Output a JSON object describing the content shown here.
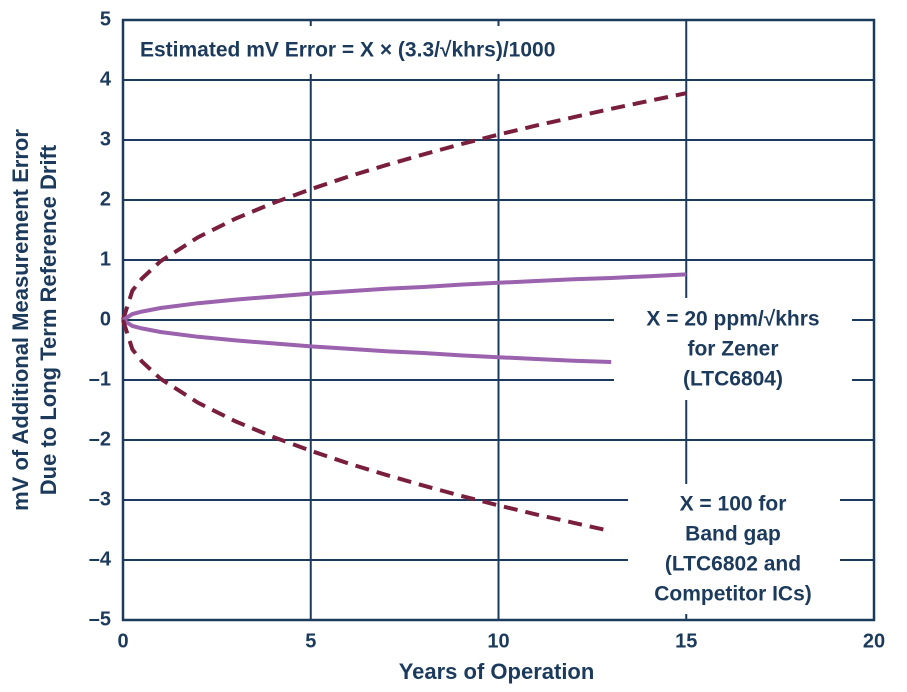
{
  "chart_data": {
    "type": "line",
    "title": "Estimated mV Error = X × (3.3/√khrs)/1000",
    "x_label": "Years of Operation",
    "y_label": [
      "mV of Additional Measurement Error",
      "Due to Long Term Reference Drift"
    ],
    "annotations": [
      [
        "X = 20 ppm/√khrs",
        "for Zener",
        "(LTC6804)"
      ],
      [
        "X = 100 for",
        "Band gap",
        "(LTC6802 and",
        "Competitor ICs)"
      ]
    ],
    "x": [
      0,
      0.25,
      0.5,
      1,
      2,
      3,
      4,
      5,
      6,
      7,
      8,
      9,
      10,
      11,
      12,
      13,
      14,
      15
    ],
    "series": [
      {
        "color": "#7a1e3e",
        "dashed": true,
        "values": [
          0,
          0.49,
          0.69,
          0.98,
          1.38,
          1.69,
          1.95,
          2.18,
          2.39,
          2.58,
          2.76,
          2.93,
          3.09,
          3.24,
          3.38,
          3.52,
          3.65,
          3.78
        ]
      },
      {
        "color": "#9b62ad",
        "dashed": false,
        "values": [
          0,
          0.1,
          0.14,
          0.2,
          0.28,
          0.34,
          0.39,
          0.44,
          0.48,
          0.52,
          0.55,
          0.59,
          0.62,
          0.65,
          0.68,
          0.7,
          0.73,
          0.76
        ]
      },
      {
        "color": "#9b62ad",
        "dashed": false,
        "values": [
          0,
          -0.1,
          -0.14,
          -0.2,
          -0.28,
          -0.34,
          -0.39,
          -0.44,
          -0.48,
          -0.52,
          -0.55,
          -0.59,
          -0.62,
          -0.65,
          -0.68,
          -0.7,
          null,
          null
        ]
      },
      {
        "color": "#7a1e3e",
        "dashed": true,
        "values": [
          0,
          -0.49,
          -0.69,
          -0.98,
          -1.38,
          -1.69,
          -1.95,
          -2.18,
          -2.39,
          -2.58,
          -2.76,
          -2.93,
          -3.09,
          -3.24,
          -3.38,
          -3.52,
          null,
          null
        ]
      }
    ],
    "xlim": [
      0,
      20
    ],
    "xticks": [
      0,
      5,
      10,
      15,
      20
    ],
    "ylim": [
      -5,
      5
    ],
    "yticks": [
      {
        "value": -5,
        "label": "–5"
      },
      {
        "value": -4,
        "label": "–4"
      },
      {
        "value": -3,
        "label": "–3"
      },
      {
        "value": -2,
        "label": "–2"
      },
      {
        "value": -1,
        "label": "–1"
      },
      0,
      1,
      2,
      3,
      4,
      5
    ],
    "grid": true
  }
}
